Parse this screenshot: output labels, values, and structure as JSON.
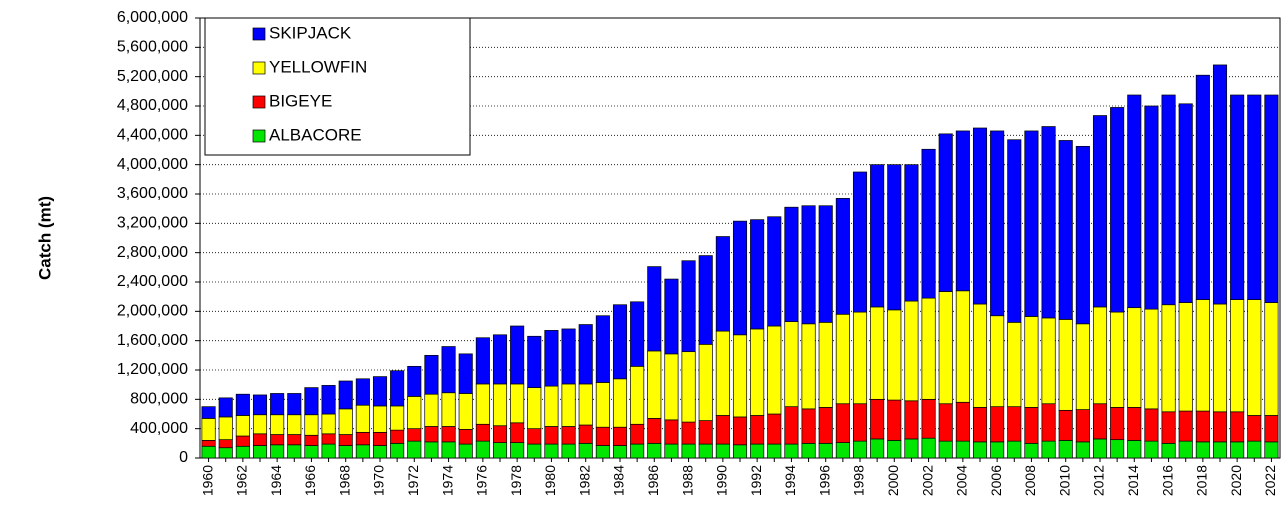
{
  "chart_data": {
    "type": "stacked_bar",
    "y_label": "Catch (mt)",
    "categories": [
      "1960",
      null,
      "1962",
      null,
      "1964",
      null,
      "1966",
      null,
      "1968",
      null,
      "1970",
      null,
      "1972",
      null,
      "1974",
      null,
      "1976",
      null,
      "1978",
      null,
      "1980",
      null,
      "1982",
      null,
      "1984",
      null,
      "1986",
      null,
      "1988",
      null,
      "1990",
      null,
      "1992",
      null,
      "1994",
      null,
      "1996",
      null,
      "1998",
      null,
      "2000",
      null,
      "2002",
      null,
      "2004",
      null,
      "2006",
      null,
      "2008",
      null,
      "2010",
      null,
      "2012",
      null,
      "2014",
      null,
      "2016",
      null,
      "2018",
      null,
      "2020",
      null,
      "2022"
    ],
    "series": [
      {
        "name": "ALBACORE",
        "color": "#00e600",
        "values": [
          160000,
          140000,
          160000,
          170000,
          180000,
          180000,
          170000,
          190000,
          170000,
          180000,
          170000,
          200000,
          230000,
          220000,
          220000,
          190000,
          230000,
          210000,
          210000,
          190000,
          190000,
          190000,
          200000,
          170000,
          170000,
          190000,
          200000,
          190000,
          190000,
          190000,
          190000,
          180000,
          190000,
          190000,
          190000,
          200000,
          200000,
          210000,
          230000,
          260000,
          240000,
          260000,
          270000,
          230000,
          230000,
          220000,
          220000,
          230000,
          200000,
          230000,
          240000,
          220000,
          260000,
          250000,
          240000,
          230000,
          200000,
          230000,
          220000,
          220000,
          220000,
          230000,
          220000
        ]
      },
      {
        "name": "BIGEYE",
        "color": "#ff0000",
        "values": [
          80000,
          110000,
          140000,
          160000,
          140000,
          140000,
          140000,
          140000,
          150000,
          170000,
          180000,
          180000,
          170000,
          210000,
          210000,
          200000,
          230000,
          230000,
          270000,
          210000,
          240000,
          240000,
          250000,
          250000,
          250000,
          270000,
          340000,
          330000,
          300000,
          320000,
          390000,
          380000,
          390000,
          410000,
          510000,
          470000,
          490000,
          530000,
          510000,
          540000,
          550000,
          520000,
          530000,
          510000,
          530000,
          470000,
          480000,
          470000,
          490000,
          510000,
          410000,
          440000,
          480000,
          440000,
          450000,
          440000,
          430000,
          410000,
          420000,
          410000,
          410000,
          350000,
          360000
        ]
      },
      {
        "name": "YELLOWFIN",
        "color": "#ffff00",
        "values": [
          300000,
          310000,
          280000,
          260000,
          270000,
          270000,
          280000,
          270000,
          350000,
          370000,
          360000,
          330000,
          440000,
          440000,
          460000,
          490000,
          550000,
          570000,
          530000,
          560000,
          550000,
          580000,
          560000,
          610000,
          660000,
          790000,
          920000,
          900000,
          960000,
          1040000,
          1150000,
          1120000,
          1180000,
          1200000,
          1160000,
          1160000,
          1160000,
          1220000,
          1250000,
          1260000,
          1230000,
          1360000,
          1380000,
          1530000,
          1520000,
          1410000,
          1240000,
          1150000,
          1240000,
          1170000,
          1240000,
          1170000,
          1320000,
          1300000,
          1360000,
          1360000,
          1460000,
          1480000,
          1520000,
          1470000,
          1530000,
          1580000,
          1540000
        ]
      },
      {
        "name": "SKIPJACK",
        "color": "#0000ff",
        "values": [
          160000,
          260000,
          290000,
          270000,
          290000,
          290000,
          370000,
          390000,
          380000,
          360000,
          400000,
          480000,
          410000,
          530000,
          630000,
          540000,
          630000,
          670000,
          790000,
          700000,
          760000,
          750000,
          810000,
          910000,
          1010000,
          880000,
          1150000,
          1020000,
          1240000,
          1210000,
          1290000,
          1550000,
          1490000,
          1490000,
          1560000,
          1610000,
          1590000,
          1580000,
          1910000,
          1940000,
          1980000,
          1860000,
          2030000,
          2150000,
          2180000,
          2400000,
          2520000,
          2490000,
          2530000,
          2610000,
          2440000,
          2420000,
          2610000,
          2790000,
          2900000,
          2770000,
          2860000,
          2710000,
          3060000,
          3260000,
          2790000,
          2790000,
          2830000
        ]
      }
    ],
    "ylim": [
      0,
      6000000
    ],
    "yticks": [
      0,
      {
        "value": 400000,
        "label": "400,000"
      },
      {
        "value": 800000,
        "label": "800,000"
      },
      {
        "value": 1200000,
        "label": "1,200,000"
      },
      {
        "value": 1600000,
        "label": "1,600,000"
      },
      {
        "value": 2000000,
        "label": "2,000,000"
      },
      {
        "value": 2400000,
        "label": "2,400,000"
      },
      {
        "value": 2800000,
        "label": "2,800,000"
      },
      {
        "value": 3200000,
        "label": "3,200,000"
      },
      {
        "value": 3600000,
        "label": "3,600,000"
      },
      {
        "value": 4000000,
        "label": "4,000,000"
      },
      {
        "value": 4400000,
        "label": "4,400,000"
      },
      {
        "value": 4800000,
        "label": "4,800,000"
      },
      {
        "value": 5200000,
        "label": "5,200,000"
      },
      {
        "value": 5600000,
        "label": "5,600,000"
      },
      {
        "value": 6000000,
        "label": "6,000,000"
      }
    ],
    "grid": true,
    "legend": "upper left"
  }
}
